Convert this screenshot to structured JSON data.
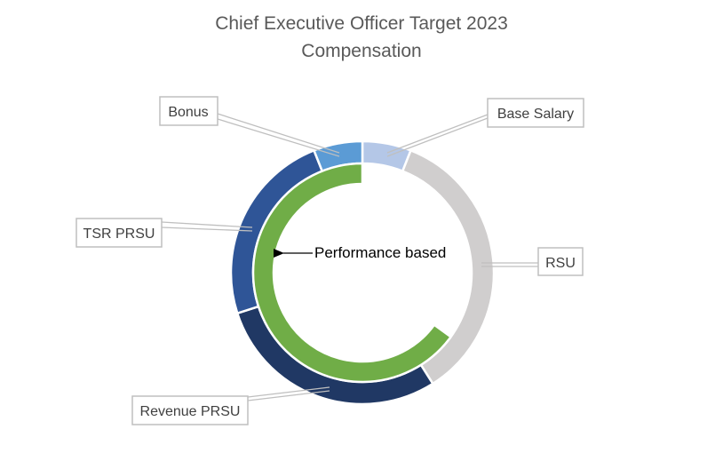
{
  "chart_data": {
    "type": "doughnut",
    "title": "Chief Executive Officer Target 2023",
    "subtitle": "Compensation",
    "unit": "percent of target compensation",
    "outer_ring": [
      {
        "name": "Base Salary",
        "value": 6,
        "color": "#B4C7E7"
      },
      {
        "name": "RSU",
        "value": 35,
        "color": "#D0CECE"
      },
      {
        "name": "Revenue PRSU",
        "value": 29,
        "color": "#203864"
      },
      {
        "name": "TSR PRSU",
        "value": 24,
        "color": "#2F5597"
      },
      {
        "name": "Bonus",
        "value": 6,
        "color": "#5B9BD5"
      }
    ],
    "inner_ring": {
      "label": "Performance based",
      "value": 65,
      "color": "#70AD47"
    },
    "legend": "none (callout labels)"
  }
}
